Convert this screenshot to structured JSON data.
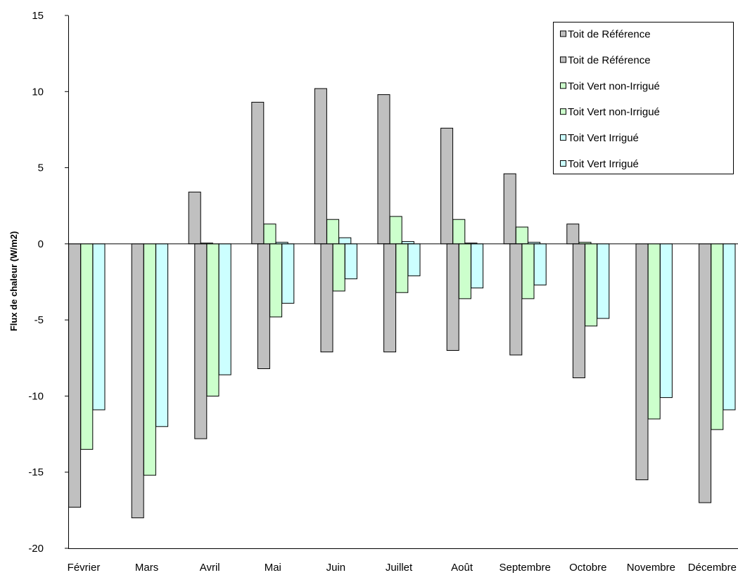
{
  "chart_data": {
    "type": "bar",
    "ylabel": "Flux de chaleur (W/m2)",
    "ylim": [
      -20,
      15
    ],
    "yticks": [
      15,
      10,
      5,
      0,
      -5,
      -10,
      -15,
      -20
    ],
    "grid": false,
    "legend": "top-right",
    "categories": [
      "Février",
      "Mars",
      "Avril",
      "Mai",
      "Juin",
      "Juillet",
      "Août",
      "Septembre",
      "Octobre",
      "Novembre",
      "Décembre"
    ],
    "series": [
      {
        "name": "Toit de Référence",
        "color": "#c0c0c0",
        "values": [
          0,
          0,
          3.4,
          9.3,
          10.2,
          9.8,
          7.6,
          4.6,
          1.3,
          0,
          0
        ]
      },
      {
        "name": "Toit de Référence",
        "color": "#c0c0c0",
        "values": [
          -17.3,
          -18.0,
          -12.8,
          -8.2,
          -7.1,
          -7.1,
          -7.0,
          -7.3,
          -8.8,
          -15.5,
          -17.0
        ]
      },
      {
        "name": "Toit Vert non-Irrigué",
        "color": "#ccffcc",
        "values": [
          0,
          0,
          0.05,
          1.3,
          1.6,
          1.8,
          1.6,
          1.1,
          0.1,
          0,
          0
        ]
      },
      {
        "name": "Toit Vert non-Irrigué",
        "color": "#ccffcc",
        "values": [
          -13.5,
          -15.2,
          -10.0,
          -4.8,
          -3.1,
          -3.2,
          -3.6,
          -3.6,
          -5.4,
          -11.5,
          -12.2
        ]
      },
      {
        "name": "Toit Vert Irrigué",
        "color": "#ccffff",
        "values": [
          0,
          0,
          0,
          0.1,
          0.4,
          0.15,
          0.05,
          0.1,
          0,
          0,
          0
        ]
      },
      {
        "name": "Toit Vert Irrigué",
        "color": "#ccffff",
        "values": [
          -10.9,
          -12.0,
          -8.6,
          -3.9,
          -2.3,
          -2.1,
          -2.9,
          -2.7,
          -4.9,
          -10.1,
          -10.9
        ]
      }
    ]
  }
}
